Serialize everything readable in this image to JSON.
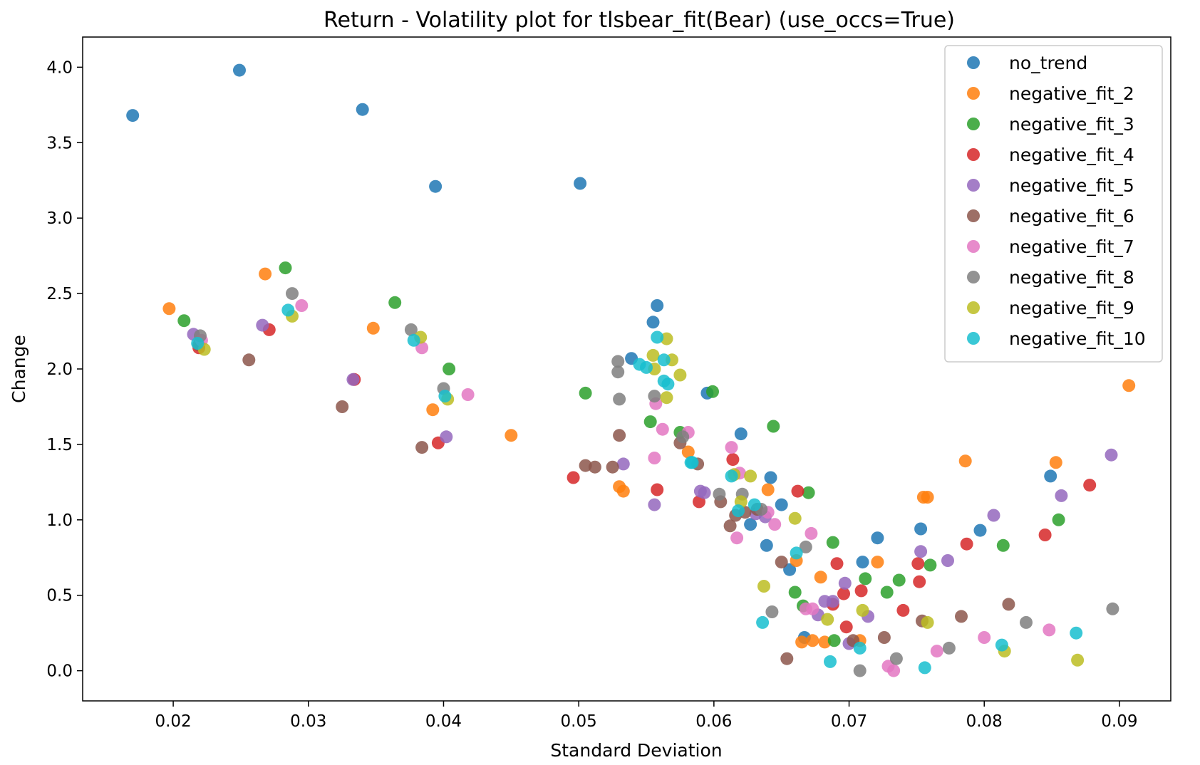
{
  "chart_data": {
    "type": "scatter",
    "title": "Return - Volatility plot for tlsbear_fit(Bear) (use_occs=True)",
    "xlabel": "Standard Deviation",
    "ylabel": "Change",
    "xlim": [
      0.0133,
      0.0938
    ],
    "ylim": [
      -0.2,
      4.2
    ],
    "xticks": [
      0.02,
      0.03,
      0.04,
      0.05,
      0.06,
      0.07,
      0.08,
      0.09
    ],
    "xtick_labels": [
      "0.02",
      "0.03",
      "0.04",
      "0.05",
      "0.06",
      "0.07",
      "0.08",
      "0.09"
    ],
    "yticks": [
      0.0,
      0.5,
      1.0,
      1.5,
      2.0,
      2.5,
      3.0,
      3.5,
      4.0
    ],
    "ytick_labels": [
      "0.0",
      "0.5",
      "1.0",
      "1.5",
      "2.0",
      "2.5",
      "3.0",
      "3.5",
      "4.0"
    ],
    "grid": false,
    "legend_position": "top-right",
    "series": [
      {
        "name": "no_trend",
        "color": "#1f77b4",
        "points": [
          [
            0.017,
            3.68
          ],
          [
            0.0249,
            3.98
          ],
          [
            0.034,
            3.72
          ],
          [
            0.0394,
            3.21
          ],
          [
            0.0501,
            3.23
          ],
          [
            0.0539,
            2.07
          ],
          [
            0.0555,
            2.31
          ],
          [
            0.0558,
            2.42
          ],
          [
            0.0595,
            1.84
          ],
          [
            0.062,
            1.57
          ],
          [
            0.0627,
            0.97
          ],
          [
            0.0639,
            0.83
          ],
          [
            0.0642,
            1.28
          ],
          [
            0.065,
            1.1
          ],
          [
            0.0656,
            0.67
          ],
          [
            0.0667,
            0.22
          ],
          [
            0.071,
            0.72
          ],
          [
            0.0721,
            0.88
          ],
          [
            0.0753,
            0.94
          ],
          [
            0.0797,
            0.93
          ],
          [
            0.0849,
            1.29
          ]
        ]
      },
      {
        "name": "negative_fit_2",
        "color": "#ff7f0e",
        "points": [
          [
            0.0197,
            2.4
          ],
          [
            0.0268,
            2.63
          ],
          [
            0.0348,
            2.27
          ],
          [
            0.0392,
            1.73
          ],
          [
            0.045,
            1.56
          ],
          [
            0.053,
            1.22
          ],
          [
            0.0533,
            1.19
          ],
          [
            0.0581,
            1.45
          ],
          [
            0.064,
            1.2
          ],
          [
            0.0661,
            0.73
          ],
          [
            0.0665,
            0.19
          ],
          [
            0.0673,
            0.2
          ],
          [
            0.0679,
            0.62
          ],
          [
            0.0682,
            0.19
          ],
          [
            0.0708,
            0.2
          ],
          [
            0.0721,
            0.72
          ],
          [
            0.0755,
            1.15
          ],
          [
            0.0758,
            1.15
          ],
          [
            0.0786,
            1.39
          ],
          [
            0.0853,
            1.38
          ],
          [
            0.0907,
            1.89
          ]
        ]
      },
      {
        "name": "negative_fit_3",
        "color": "#2ca02c",
        "points": [
          [
            0.0208,
            2.32
          ],
          [
            0.0283,
            2.67
          ],
          [
            0.0364,
            2.44
          ],
          [
            0.0404,
            2.0
          ],
          [
            0.0505,
            1.84
          ],
          [
            0.0553,
            1.65
          ],
          [
            0.0575,
            1.58
          ],
          [
            0.0599,
            1.85
          ],
          [
            0.0644,
            1.62
          ],
          [
            0.066,
            0.52
          ],
          [
            0.0666,
            0.43
          ],
          [
            0.067,
            1.18
          ],
          [
            0.0688,
            0.85
          ],
          [
            0.0689,
            0.2
          ],
          [
            0.0712,
            0.61
          ],
          [
            0.0728,
            0.52
          ],
          [
            0.0737,
            0.6
          ],
          [
            0.076,
            0.7
          ],
          [
            0.0814,
            0.83
          ],
          [
            0.0855,
            1.0
          ]
        ]
      },
      {
        "name": "negative_fit_4",
        "color": "#d62728",
        "points": [
          [
            0.0219,
            2.14
          ],
          [
            0.0271,
            2.26
          ],
          [
            0.0334,
            1.93
          ],
          [
            0.0396,
            1.51
          ],
          [
            0.0496,
            1.28
          ],
          [
            0.0558,
            1.2
          ],
          [
            0.0589,
            1.12
          ],
          [
            0.0614,
            1.4
          ],
          [
            0.0662,
            1.19
          ],
          [
            0.0688,
            0.44
          ],
          [
            0.0691,
            0.71
          ],
          [
            0.0696,
            0.51
          ],
          [
            0.0698,
            0.29
          ],
          [
            0.0709,
            0.53
          ],
          [
            0.074,
            0.4
          ],
          [
            0.0751,
            0.71
          ],
          [
            0.0752,
            0.59
          ],
          [
            0.0787,
            0.84
          ],
          [
            0.0845,
            0.9
          ],
          [
            0.0878,
            1.23
          ]
        ]
      },
      {
        "name": "negative_fit_5",
        "color": "#9467bd",
        "points": [
          [
            0.0215,
            2.23
          ],
          [
            0.0266,
            2.29
          ],
          [
            0.0333,
            1.93
          ],
          [
            0.0402,
            1.55
          ],
          [
            0.0533,
            1.37
          ],
          [
            0.0556,
            1.1
          ],
          [
            0.059,
            1.19
          ],
          [
            0.0593,
            1.18
          ],
          [
            0.0631,
            1.04
          ],
          [
            0.0638,
            1.02
          ],
          [
            0.0677,
            0.37
          ],
          [
            0.0682,
            0.46
          ],
          [
            0.0688,
            0.46
          ],
          [
            0.0697,
            0.58
          ],
          [
            0.07,
            0.18
          ],
          [
            0.0714,
            0.36
          ],
          [
            0.0753,
            0.79
          ],
          [
            0.0773,
            0.73
          ],
          [
            0.0807,
            1.03
          ],
          [
            0.0857,
            1.16
          ],
          [
            0.0894,
            1.43
          ]
        ]
      },
      {
        "name": "negative_fit_6",
        "color": "#8c564b",
        "points": [
          [
            0.0219,
            2.16
          ],
          [
            0.0256,
            2.06
          ],
          [
            0.0325,
            1.75
          ],
          [
            0.0384,
            1.48
          ],
          [
            0.0505,
            1.36
          ],
          [
            0.0512,
            1.35
          ],
          [
            0.0525,
            1.35
          ],
          [
            0.053,
            1.56
          ],
          [
            0.0575,
            1.51
          ],
          [
            0.0588,
            1.37
          ],
          [
            0.0605,
            1.12
          ],
          [
            0.0612,
            0.96
          ],
          [
            0.0616,
            1.03
          ],
          [
            0.0623,
            1.05
          ],
          [
            0.0632,
            1.07
          ],
          [
            0.065,
            0.72
          ],
          [
            0.0654,
            0.08
          ],
          [
            0.0703,
            0.2
          ],
          [
            0.0726,
            0.22
          ],
          [
            0.0754,
            0.33
          ],
          [
            0.0783,
            0.36
          ],
          [
            0.0818,
            0.44
          ]
        ]
      },
      {
        "name": "negative_fit_7",
        "color": "#e377c2",
        "points": [
          [
            0.0221,
            2.19
          ],
          [
            0.0295,
            2.42
          ],
          [
            0.0384,
            2.14
          ],
          [
            0.0418,
            1.83
          ],
          [
            0.0556,
            1.41
          ],
          [
            0.0557,
            1.77
          ],
          [
            0.0562,
            1.6
          ],
          [
            0.0581,
            1.58
          ],
          [
            0.0613,
            1.48
          ],
          [
            0.0617,
            0.88
          ],
          [
            0.0619,
            1.31
          ],
          [
            0.064,
            1.05
          ],
          [
            0.0645,
            0.97
          ],
          [
            0.0668,
            0.41
          ],
          [
            0.0672,
            0.91
          ],
          [
            0.0673,
            0.41
          ],
          [
            0.0729,
            0.03
          ],
          [
            0.0733,
            0.0
          ],
          [
            0.0765,
            0.13
          ],
          [
            0.08,
            0.22
          ],
          [
            0.0848,
            0.27
          ]
        ]
      },
      {
        "name": "negative_fit_8",
        "color": "#7f7f7f",
        "points": [
          [
            0.022,
            2.22
          ],
          [
            0.0288,
            2.5
          ],
          [
            0.0376,
            2.26
          ],
          [
            0.04,
            1.87
          ],
          [
            0.0529,
            2.05
          ],
          [
            0.0529,
            1.98
          ],
          [
            0.053,
            1.8
          ],
          [
            0.0556,
            1.82
          ],
          [
            0.0577,
            1.55
          ],
          [
            0.0604,
            1.17
          ],
          [
            0.0621,
            1.17
          ],
          [
            0.0635,
            1.07
          ],
          [
            0.0643,
            0.39
          ],
          [
            0.0668,
            0.82
          ],
          [
            0.0708,
            0.0
          ],
          [
            0.0735,
            0.08
          ],
          [
            0.0774,
            0.15
          ],
          [
            0.0831,
            0.32
          ],
          [
            0.0895,
            0.41
          ]
        ]
      },
      {
        "name": "negative_fit_9",
        "color": "#bcbd22",
        "points": [
          [
            0.0223,
            2.13
          ],
          [
            0.0288,
            2.35
          ],
          [
            0.0383,
            2.21
          ],
          [
            0.0403,
            1.8
          ],
          [
            0.0555,
            2.09
          ],
          [
            0.0556,
            2.0
          ],
          [
            0.0565,
            2.2
          ],
          [
            0.0565,
            1.81
          ],
          [
            0.0569,
            2.06
          ],
          [
            0.0575,
            1.96
          ],
          [
            0.0615,
            1.3
          ],
          [
            0.062,
            1.12
          ],
          [
            0.0627,
            1.29
          ],
          [
            0.0637,
            0.56
          ],
          [
            0.066,
            1.01
          ],
          [
            0.0684,
            0.34
          ],
          [
            0.071,
            0.4
          ],
          [
            0.0758,
            0.32
          ],
          [
            0.0815,
            0.13
          ],
          [
            0.0869,
            0.07
          ]
        ]
      },
      {
        "name": "negative_fit_10",
        "color": "#17becf",
        "points": [
          [
            0.0218,
            2.17
          ],
          [
            0.0285,
            2.39
          ],
          [
            0.0378,
            2.19
          ],
          [
            0.0401,
            1.82
          ],
          [
            0.0545,
            2.03
          ],
          [
            0.055,
            2.01
          ],
          [
            0.0558,
            2.21
          ],
          [
            0.0563,
            2.06
          ],
          [
            0.0563,
            1.92
          ],
          [
            0.0566,
            1.9
          ],
          [
            0.0583,
            1.38
          ],
          [
            0.0584,
            1.38
          ],
          [
            0.0613,
            1.29
          ],
          [
            0.0618,
            1.06
          ],
          [
            0.063,
            1.1
          ],
          [
            0.0636,
            0.32
          ],
          [
            0.0661,
            0.78
          ],
          [
            0.0686,
            0.06
          ],
          [
            0.0708,
            0.15
          ],
          [
            0.0756,
            0.02
          ],
          [
            0.0813,
            0.17
          ],
          [
            0.0868,
            0.25
          ]
        ]
      }
    ]
  }
}
